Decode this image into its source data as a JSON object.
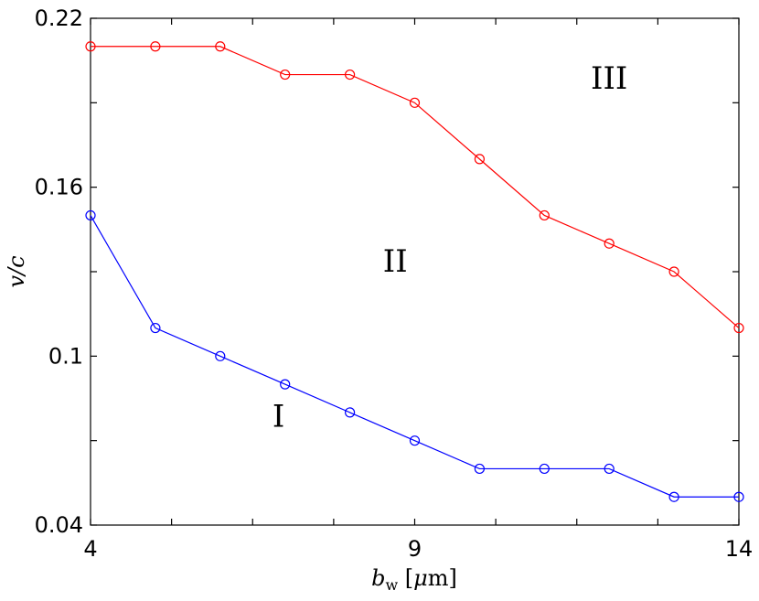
{
  "chart_data": {
    "type": "line",
    "xlabel": "b_w [μm]",
    "ylabel": "v/c",
    "xlim": [
      4,
      14
    ],
    "ylim": [
      0.04,
      0.22
    ],
    "x_ticks": [
      4,
      5.25,
      6.5,
      7.75,
      9,
      10.25,
      11.5,
      12.75,
      14
    ],
    "x_tick_labels": [
      "4",
      "",
      "",
      "",
      "9",
      "",
      "",
      "",
      "14"
    ],
    "y_ticks": [
      0.04,
      0.07,
      0.1,
      0.13,
      0.16,
      0.19,
      0.22
    ],
    "y_tick_labels": [
      "0.04",
      "",
      "0.1",
      "",
      "0.16",
      "",
      "0.22"
    ],
    "grid": false,
    "legend": "none",
    "x": [
      4,
      5,
      6,
      7,
      8,
      9,
      10,
      11,
      12,
      13,
      14
    ],
    "series": [
      {
        "color": "#ff0000",
        "marker": "circle-open",
        "values": [
          0.21,
          0.21,
          0.21,
          0.2,
          0.2,
          0.19,
          0.17,
          0.15,
          0.14,
          0.13,
          0.11
        ]
      },
      {
        "color": "#0000ff",
        "marker": "circle-open",
        "values": [
          0.15,
          0.11,
          0.1,
          0.09,
          0.08,
          0.07,
          0.06,
          0.06,
          0.06,
          0.05,
          0.05
        ]
      }
    ],
    "annotations": [
      {
        "text": "I",
        "x": 6.9,
        "y": 0.075
      },
      {
        "text": "II",
        "x": 8.7,
        "y": 0.13
      },
      {
        "text": "III",
        "x": 12.0,
        "y": 0.195
      }
    ]
  }
}
